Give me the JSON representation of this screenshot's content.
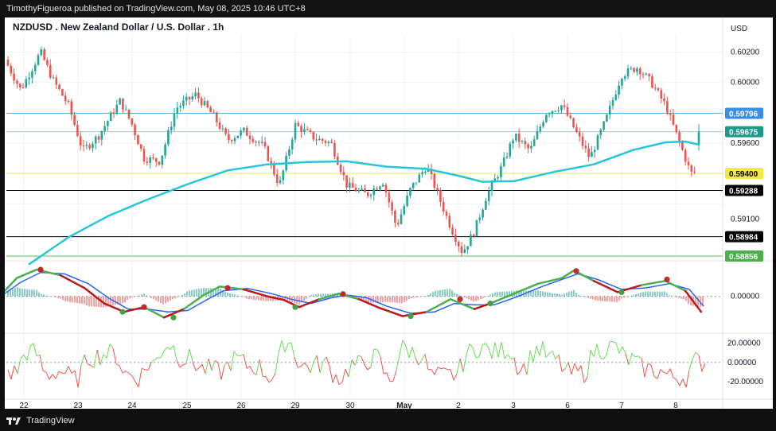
{
  "header": {
    "attribution": "TimothyFigueroa published on TradingView.com, May 08, 2025 10:46 UTC+8"
  },
  "footer": {
    "brand": "TradingView"
  },
  "chart_data": {
    "type": "candlestick",
    "title": "NZDUSD . New Zealand Dollar / U.S. Dollar . 1h",
    "currency": "USD",
    "x_ticks": [
      "22",
      "23",
      "24",
      "25",
      "26",
      "29",
      "30",
      "May",
      "2",
      "3",
      "6",
      "7",
      "8"
    ],
    "price_axis": {
      "ylim": [
        0.5883,
        0.6027
      ],
      "ticks": [
        "0.60200",
        "0.60000",
        "0.59600",
        "0.59100"
      ]
    },
    "price_path": [
      [
        0,
        0.6015
      ],
      [
        20,
        0.5995
      ],
      [
        45,
        0.602
      ],
      [
        60,
        0.6002
      ],
      [
        80,
        0.5985
      ],
      [
        98,
        0.5955
      ],
      [
        118,
        0.5965
      ],
      [
        145,
        0.5988
      ],
      [
        160,
        0.5972
      ],
      [
        175,
        0.595
      ],
      [
        195,
        0.5948
      ],
      [
        215,
        0.5983
      ],
      [
        240,
        0.5992
      ],
      [
        262,
        0.5978
      ],
      [
        280,
        0.5962
      ],
      [
        300,
        0.5968
      ],
      [
        325,
        0.5958
      ],
      [
        345,
        0.5932
      ],
      [
        365,
        0.5972
      ],
      [
        390,
        0.5963
      ],
      [
        410,
        0.596
      ],
      [
        430,
        0.5932
      ],
      [
        455,
        0.5926
      ],
      [
        475,
        0.5935
      ],
      [
        492,
        0.5905
      ],
      [
        510,
        0.593
      ],
      [
        530,
        0.5945
      ],
      [
        545,
        0.5925
      ],
      [
        560,
        0.5905
      ],
      [
        575,
        0.5888
      ],
      [
        590,
        0.5902
      ],
      [
        605,
        0.5925
      ],
      [
        625,
        0.5945
      ],
      [
        640,
        0.5965
      ],
      [
        660,
        0.5955
      ],
      [
        680,
        0.598
      ],
      [
        700,
        0.5985
      ],
      [
        715,
        0.597
      ],
      [
        735,
        0.595
      ],
      [
        755,
        0.5975
      ],
      [
        775,
        0.6005
      ],
      [
        795,
        0.601
      ],
      [
        812,
        0.6
      ],
      [
        830,
        0.5985
      ],
      [
        848,
        0.596
      ],
      [
        862,
        0.594
      ],
      [
        870,
        0.5942
      ]
    ],
    "last_candle": {
      "open": 0.5959,
      "close": 0.59675,
      "high": 0.59725,
      "low": 0.5955
    },
    "moving_average": [
      [
        30,
        0.588
      ],
      [
        80,
        0.5898
      ],
      [
        130,
        0.5912
      ],
      [
        180,
        0.5923
      ],
      [
        230,
        0.5933
      ],
      [
        280,
        0.5942
      ],
      [
        330,
        0.5946
      ],
      [
        380,
        0.59475
      ],
      [
        430,
        0.5948
      ],
      [
        480,
        0.59445
      ],
      [
        530,
        0.5943
      ],
      [
        570,
        0.59385
      ],
      [
        600,
        0.59345
      ],
      [
        640,
        0.5935
      ],
      [
        690,
        0.5941
      ],
      [
        740,
        0.5946
      ],
      [
        790,
        0.59555
      ],
      [
        830,
        0.59605
      ],
      [
        855,
        0.5961
      ],
      [
        872,
        0.5959
      ]
    ],
    "levels": [
      {
        "label": "0.59796",
        "price": 0.59796,
        "color": "#5fb3e0",
        "label_bg": "#3a8ee6",
        "text_color": "#ffffff"
      },
      {
        "label": "0.59675",
        "price": 0.59675,
        "color": "#9ec9d6",
        "label_bg": "#1c9a8c",
        "text_color": "#ffffff"
      },
      {
        "label": "0.59400",
        "price": 0.594,
        "color": "#f0e66a",
        "label_bg": "#f3e84a",
        "text_color": "#000000"
      },
      {
        "label": "0.59288",
        "price": 0.59288,
        "color": "#000000",
        "label_bg": "#000000",
        "text_color": "#ffffff"
      },
      {
        "label": "0.58984",
        "price": 0.58984,
        "color": "#000000",
        "label_bg": "#000000",
        "text_color": "#ffffff"
      },
      {
        "label": "0.58856",
        "price": 0.58856,
        "color": "#66c45a",
        "label_bg": "#49b04a",
        "text_color": "#ffffff"
      }
    ],
    "oscillator": {
      "ticks": [
        "0.00000"
      ],
      "ylim": [
        -1.25,
        1.15
      ],
      "fast_line": [
        [
          0,
          0.2
        ],
        [
          15,
          0.65
        ],
        [
          40,
          0.95
        ],
        [
          70,
          0.75
        ],
        [
          100,
          0.3
        ],
        [
          125,
          -0.25
        ],
        [
          150,
          -0.55
        ],
        [
          175,
          -0.38
        ],
        [
          200,
          -0.75
        ],
        [
          225,
          -0.45
        ],
        [
          250,
          0.05
        ],
        [
          270,
          0.35
        ],
        [
          300,
          0.25
        ],
        [
          330,
          0.0
        ],
        [
          350,
          -0.12
        ],
        [
          370,
          -0.38
        ],
        [
          395,
          -0.1
        ],
        [
          420,
          0.1
        ],
        [
          445,
          -0.1
        ],
        [
          470,
          -0.4
        ],
        [
          500,
          -0.7
        ],
        [
          530,
          -0.55
        ],
        [
          560,
          -0.1
        ],
        [
          590,
          -0.45
        ],
        [
          610,
          -0.25
        ],
        [
          640,
          0.1
        ],
        [
          670,
          0.45
        ],
        [
          700,
          0.65
        ],
        [
          715,
          0.92
        ],
        [
          740,
          0.55
        ],
        [
          770,
          0.15
        ],
        [
          800,
          0.4
        ],
        [
          830,
          0.55
        ],
        [
          855,
          0.2
        ],
        [
          875,
          -0.55
        ]
      ],
      "signal_line": [
        [
          0,
          0.1
        ],
        [
          20,
          0.5
        ],
        [
          45,
          0.85
        ],
        [
          75,
          0.8
        ],
        [
          105,
          0.45
        ],
        [
          130,
          -0.05
        ],
        [
          155,
          -0.45
        ],
        [
          180,
          -0.45
        ],
        [
          205,
          -0.55
        ],
        [
          230,
          -0.5
        ],
        [
          255,
          -0.1
        ],
        [
          275,
          0.2
        ],
        [
          305,
          0.28
        ],
        [
          335,
          0.1
        ],
        [
          360,
          -0.1
        ],
        [
          385,
          -0.25
        ],
        [
          410,
          -0.05
        ],
        [
          430,
          0.05
        ],
        [
          455,
          -0.05
        ],
        [
          480,
          -0.35
        ],
        [
          510,
          -0.6
        ],
        [
          540,
          -0.55
        ],
        [
          565,
          -0.25
        ],
        [
          590,
          -0.3
        ],
        [
          615,
          -0.3
        ],
        [
          645,
          0.0
        ],
        [
          675,
          0.35
        ],
        [
          705,
          0.65
        ],
        [
          720,
          0.8
        ],
        [
          745,
          0.6
        ],
        [
          775,
          0.25
        ],
        [
          805,
          0.3
        ],
        [
          835,
          0.45
        ],
        [
          860,
          0.25
        ],
        [
          878,
          -0.35
        ]
      ],
      "dots_red": [
        [
          45,
          0.95
        ],
        [
          175,
          -0.38
        ],
        [
          280,
          0.3
        ],
        [
          425,
          0.08
        ],
        [
          572,
          -0.1
        ],
        [
          718,
          0.9
        ],
        [
          832,
          0.6
        ]
      ],
      "dots_green": [
        [
          148,
          -0.55
        ],
        [
          212,
          -0.75
        ],
        [
          365,
          -0.38
        ],
        [
          510,
          -0.7
        ],
        [
          610,
          -0.25
        ],
        [
          775,
          0.15
        ]
      ]
    },
    "rsi_panel": {
      "ticks": [
        "20.00000",
        "0.00000",
        "-20.00000"
      ],
      "ylim": [
        -30,
        28
      ]
    }
  }
}
